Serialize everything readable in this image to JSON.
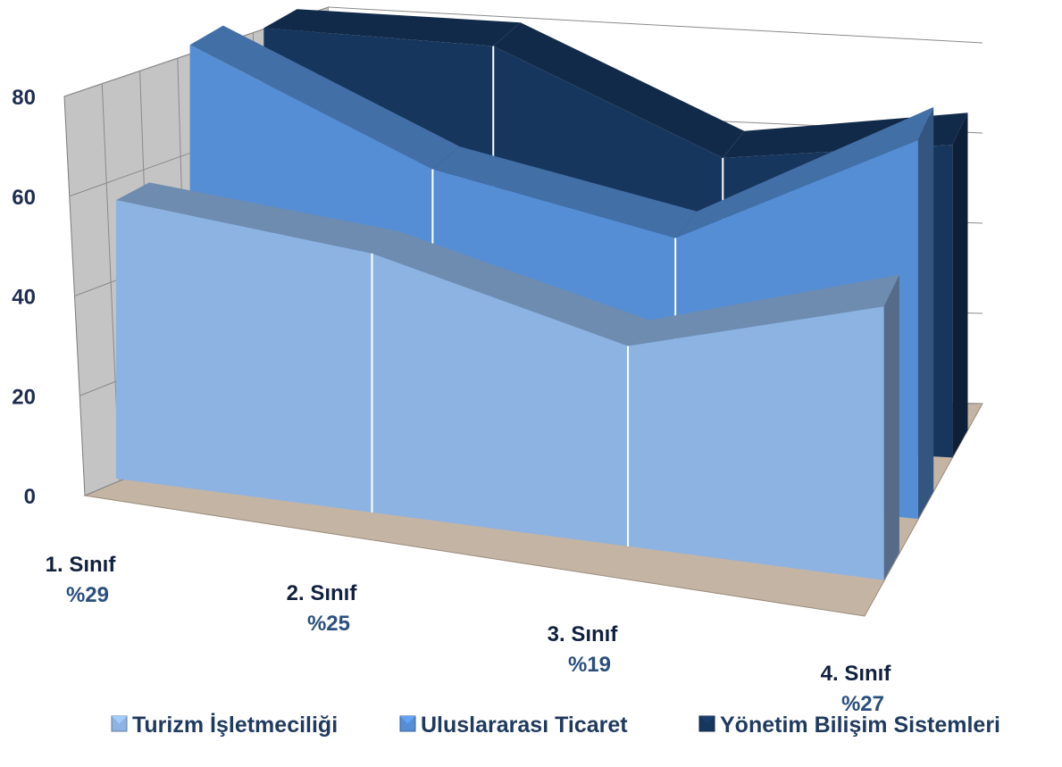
{
  "chart_data": {
    "type": "area",
    "variant": "3d-ribbon",
    "categories": [
      "1. Sınıf",
      "2. Sınıf",
      "3. Sınıf",
      "4. Sınıf"
    ],
    "category_percents": [
      "%29",
      "%25",
      "%19",
      "%27"
    ],
    "y_ticks": [
      "0",
      "20",
      "40",
      "60",
      "80"
    ],
    "ylim": [
      0,
      80
    ],
    "grid": true,
    "legend_position": "bottom",
    "series": [
      {
        "name": "Turizm İşletmeciliği",
        "values": [
          57,
          53,
          41,
          56
        ],
        "color": "#8db3e2"
      },
      {
        "name": "Uluslararası Ticaret",
        "values": [
          80,
          60,
          51,
          75
        ],
        "color": "#558ed5"
      },
      {
        "name": "Yönetim Bilişim Sistemleri",
        "values": [
          75,
          74,
          55,
          60
        ],
        "color": "#17365d"
      }
    ]
  }
}
